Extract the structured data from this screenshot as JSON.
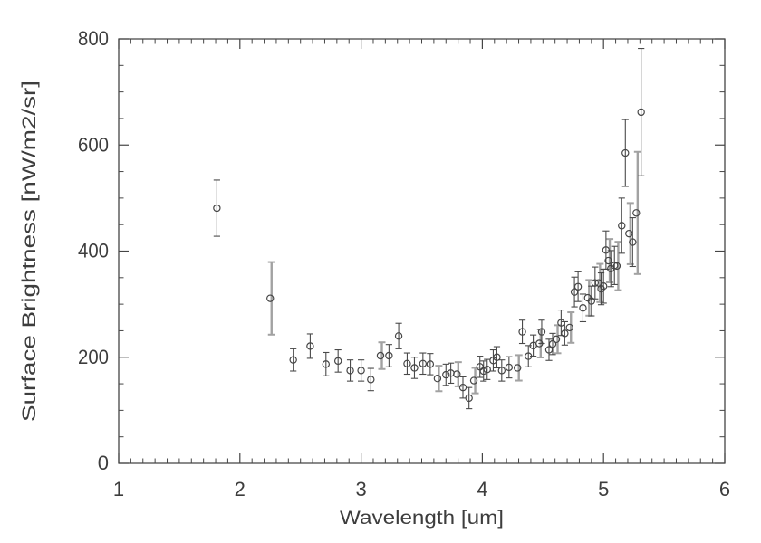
{
  "colors": {
    "background": "#ffffff",
    "axis": "#454545",
    "text": "#3d3d3d",
    "marker": "#454545",
    "error_bar": "#4a4a4a",
    "gray_error_bar": "#a2a2a2"
  },
  "chart_data": {
    "type": "scatter",
    "title": "",
    "xlabel": "Wavelength [um]",
    "ylabel": "Surface Brightness [nW/m2/sr]",
    "xlim": [
      1,
      6
    ],
    "ylim": [
      0,
      800
    ],
    "x_major_ticks": [
      1,
      2,
      3,
      4,
      5,
      6
    ],
    "x_minor_step": 0.1,
    "y_major_ticks": [
      0,
      200,
      400,
      600,
      800
    ],
    "y_minor_step": 50,
    "grid": false,
    "legend": "none",
    "marker": "open-circle",
    "error_bars": "vertical-with-caps",
    "points_columns": [
      "wavelength_um",
      "surface_brightness_nW_m2_sr",
      "error",
      "gray_band"
    ],
    "points": [
      [
        1.81,
        481,
        53,
        0
      ],
      [
        2.25,
        311,
        57,
        1
      ],
      [
        2.44,
        195,
        21,
        0
      ],
      [
        2.58,
        221,
        23,
        0
      ],
      [
        2.71,
        187,
        22,
        0
      ],
      [
        2.81,
        193,
        21,
        0
      ],
      [
        2.91,
        175,
        20,
        0
      ],
      [
        3.0,
        175,
        20,
        0
      ],
      [
        3.08,
        158,
        21,
        0
      ],
      [
        3.16,
        203,
        21,
        1
      ],
      [
        3.23,
        203,
        21,
        0
      ],
      [
        3.31,
        240,
        24,
        0
      ],
      [
        3.38,
        188,
        20,
        0
      ],
      [
        3.44,
        180,
        20,
        0
      ],
      [
        3.51,
        188,
        20,
        0
      ],
      [
        3.57,
        187,
        20,
        0
      ],
      [
        3.63,
        160,
        20,
        1
      ],
      [
        3.7,
        167,
        20,
        0
      ],
      [
        3.74,
        170,
        19,
        0
      ],
      [
        3.79,
        168,
        19,
        1
      ],
      [
        3.84,
        143,
        20,
        0
      ],
      [
        3.89,
        123,
        20,
        0
      ],
      [
        3.93,
        156,
        20,
        1
      ],
      [
        3.98,
        182,
        20,
        0
      ],
      [
        4.01,
        174,
        19,
        0
      ],
      [
        4.04,
        177,
        19,
        0
      ],
      [
        4.09,
        194,
        20,
        0
      ],
      [
        4.12,
        200,
        20,
        0
      ],
      [
        4.16,
        175,
        20,
        0
      ],
      [
        4.22,
        181,
        20,
        0
      ],
      [
        4.29,
        180,
        20,
        1
      ],
      [
        4.33,
        248,
        22,
        0
      ],
      [
        4.38,
        202,
        20,
        0
      ],
      [
        4.42,
        222,
        20,
        0
      ],
      [
        4.47,
        226,
        22,
        1
      ],
      [
        4.49,
        248,
        22,
        0
      ],
      [
        4.55,
        214,
        20,
        0
      ],
      [
        4.58,
        225,
        20,
        0
      ],
      [
        4.61,
        234,
        22,
        1
      ],
      [
        4.65,
        265,
        24,
        0
      ],
      [
        4.68,
        245,
        22,
        0
      ],
      [
        4.72,
        256,
        24,
        1
      ],
      [
        4.76,
        323,
        28,
        0
      ],
      [
        4.79,
        333,
        28,
        0
      ],
      [
        4.83,
        293,
        26,
        0
      ],
      [
        4.87,
        312,
        28,
        1
      ],
      [
        4.9,
        306,
        28,
        0
      ],
      [
        4.93,
        340,
        30,
        0
      ],
      [
        4.96,
        340,
        30,
        1
      ],
      [
        4.98,
        329,
        30,
        0
      ],
      [
        5.0,
        334,
        32,
        0
      ],
      [
        5.02,
        402,
        36,
        0
      ],
      [
        5.04,
        382,
        34,
        1
      ],
      [
        5.06,
        367,
        34,
        0
      ],
      [
        5.09,
        373,
        36,
        0
      ],
      [
        5.11,
        372,
        38,
        1
      ],
      [
        5.15,
        448,
        52,
        0
      ],
      [
        5.18,
        585,
        63,
        0
      ],
      [
        5.21,
        433,
        48,
        1
      ],
      [
        5.24,
        417,
        46,
        0
      ],
      [
        5.27,
        472,
        96,
        1
      ],
      [
        5.31,
        662,
        120,
        0
      ]
    ]
  }
}
